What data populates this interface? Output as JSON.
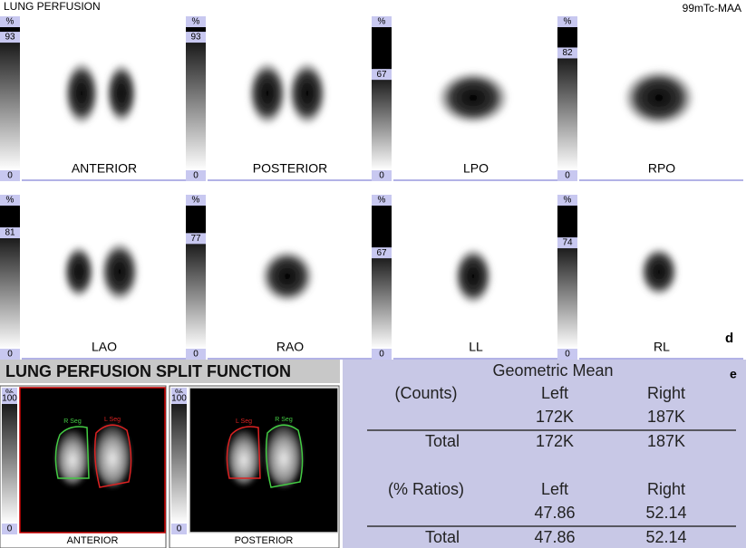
{
  "header": {
    "title": "LUNG PERFUSION",
    "tracer": "99mTc-MAA",
    "panel_letter": "d"
  },
  "views": [
    {
      "label": "ANTERIOR",
      "unit": "%",
      "max": 93,
      "min": 0
    },
    {
      "label": "POSTERIOR",
      "unit": "%",
      "max": 93,
      "min": 0
    },
    {
      "label": "LPO",
      "unit": "%",
      "max": 67,
      "min": 0
    },
    {
      "label": "RPO",
      "unit": "%",
      "max": 82,
      "min": 0
    },
    {
      "label": "LAO",
      "unit": "%",
      "max": 81,
      "min": 0
    },
    {
      "label": "RAO",
      "unit": "%",
      "max": 77,
      "min": 0
    },
    {
      "label": "LL",
      "unit": "%",
      "max": 67,
      "min": 0
    },
    {
      "label": "RL",
      "unit": "%",
      "max": 74,
      "min": 0
    }
  ],
  "split": {
    "title": "LUNG PERFUSION SPLIT FUNCTION",
    "images": [
      {
        "unit": "%",
        "max": 100,
        "min": 0,
        "label": "ANTERIOR",
        "left_roi": "R Seg",
        "right_roi": "L Seg"
      },
      {
        "unit": "%",
        "max": 100,
        "min": 0,
        "label": "POSTERIOR",
        "left_roi": "L Seg",
        "right_roi": "R Seg"
      }
    ]
  },
  "table": {
    "letter": "e",
    "title": "Geometric Mean",
    "sections": [
      {
        "heading": "(Counts)",
        "columns": [
          "Left",
          "Right"
        ],
        "values": [
          "172K",
          "187K"
        ],
        "total_label": "Total",
        "totals": [
          "172K",
          "187K"
        ]
      },
      {
        "heading": "(% Ratios)",
        "columns": [
          "Left",
          "Right"
        ],
        "values": [
          47.86,
          52.14
        ],
        "total_label": "Total",
        "totals": [
          47.86,
          52.14
        ]
      }
    ]
  }
}
